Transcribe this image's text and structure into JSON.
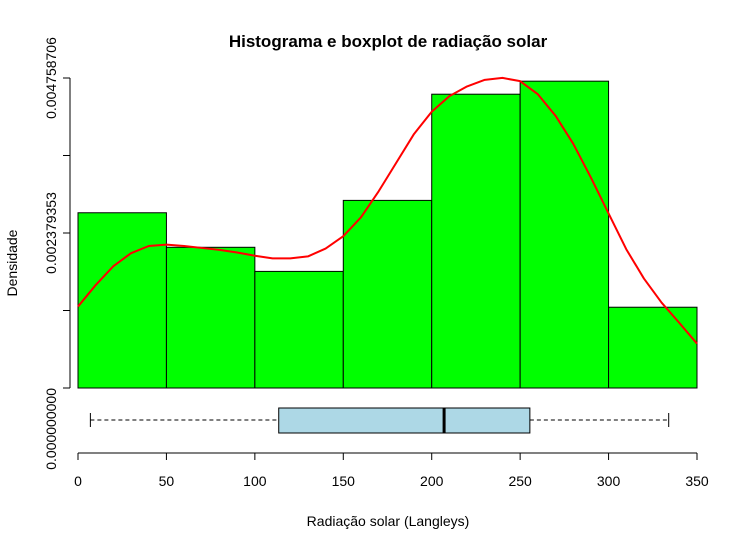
{
  "chart_data": {
    "type": "histogram",
    "title": "Histograma e boxplot de radiação solar",
    "xlabel": "Radiação solar (Langleys)",
    "ylabel": "Densidade",
    "xlim": [
      0,
      350
    ],
    "ylim": [
      0,
      0.004758706
    ],
    "x_ticks": [
      "0",
      "50",
      "100",
      "150",
      "200",
      "250",
      "300",
      "350"
    ],
    "y_ticks": [
      "0.000000000",
      "0.002379353",
      "0.004758706"
    ],
    "y_tick_values": [
      0,
      0.0011896765,
      0.002379353,
      0.0035690295,
      0.004758706
    ],
    "bins": [
      {
        "from": 0,
        "to": 50,
        "density": 0.00269
      },
      {
        "from": 50,
        "to": 100,
        "density": 0.00216
      },
      {
        "from": 100,
        "to": 150,
        "density": 0.00179
      },
      {
        "from": 150,
        "to": 200,
        "density": 0.00288
      },
      {
        "from": 200,
        "to": 250,
        "density": 0.00451
      },
      {
        "from": 250,
        "to": 300,
        "density": 0.00471
      },
      {
        "from": 300,
        "to": 350,
        "density": 0.00124
      }
    ],
    "density_curve": {
      "x": [
        0,
        10,
        20,
        30,
        40,
        50,
        60,
        70,
        80,
        90,
        100,
        110,
        120,
        130,
        140,
        150,
        160,
        170,
        180,
        190,
        200,
        210,
        220,
        230,
        240,
        250,
        260,
        270,
        280,
        290,
        300,
        310,
        320,
        330,
        340,
        350
      ],
      "y": [
        0.00125,
        0.00158,
        0.00187,
        0.00207,
        0.00218,
        0.0022,
        0.00218,
        0.00215,
        0.00212,
        0.00208,
        0.00203,
        0.00199,
        0.00199,
        0.00202,
        0.00214,
        0.00233,
        0.00262,
        0.00302,
        0.00346,
        0.0039,
        0.00424,
        0.00448,
        0.00463,
        0.00473,
        0.00476,
        0.00471,
        0.00451,
        0.00418,
        0.00375,
        0.00323,
        0.00268,
        0.00213,
        0.00168,
        0.00131,
        0.001,
        0.00068
      ]
    },
    "boxplot": {
      "min": 7,
      "q1": 113.5,
      "median": 207,
      "q3": 255.5,
      "max": 334
    },
    "colors": {
      "bars": "#00ff00",
      "curve": "#ff0000",
      "box": "#add8e6"
    }
  }
}
